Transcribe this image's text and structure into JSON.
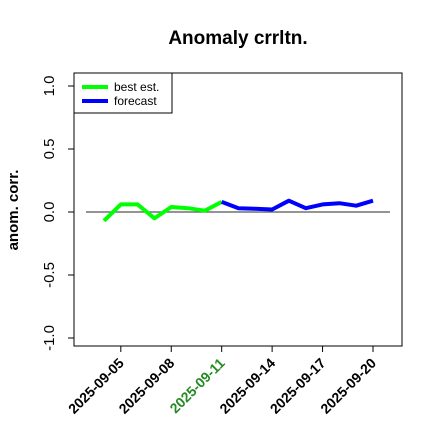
{
  "chart_data": {
    "type": "line",
    "title": "Anomaly crrltn.",
    "ylabel": "anom. corr.",
    "xlabel": "",
    "ylim": [
      -1.05,
      1.05
    ],
    "yticks": [
      -1.0,
      -0.5,
      0.0,
      0.5,
      1.0
    ],
    "ytick_labels": [
      "-1.0",
      "-0.5",
      "0.0",
      "0.5",
      "1.0"
    ],
    "x": [
      "2025-09-04",
      "2025-09-05",
      "2025-09-06",
      "2025-09-07",
      "2025-09-08",
      "2025-09-09",
      "2025-09-10",
      "2025-09-11",
      "2025-09-12",
      "2025-09-13",
      "2025-09-14",
      "2025-09-15",
      "2025-09-16",
      "2025-09-17",
      "2025-09-18",
      "2025-09-19",
      "2025-09-20"
    ],
    "xticks": [
      "2025-09-05",
      "2025-09-08",
      "2025-09-11",
      "2025-09-14",
      "2025-09-17",
      "2025-09-20"
    ],
    "xtick_colors": [
      "#000000",
      "#000000",
      "#228b22",
      "#000000",
      "#000000",
      "#000000"
    ],
    "reference_line": 0.0,
    "reference_line_color": "#555555",
    "series": [
      {
        "name": "best est.",
        "color": "#00ff00",
        "values": [
          -0.07,
          0.06,
          0.06,
          -0.05,
          0.04,
          0.03,
          0.01,
          0.08,
          null,
          null,
          null,
          null,
          null,
          null,
          null,
          null,
          0.07
        ]
      },
      {
        "name": "forecast",
        "color": "#0000ff",
        "values": [
          null,
          null,
          null,
          null,
          null,
          null,
          null,
          0.08,
          0.03,
          0.025,
          0.02,
          0.09,
          0.03,
          0.06,
          0.07,
          0.05,
          0.09
        ]
      }
    ],
    "legend": {
      "placement": "top-left",
      "entries": [
        "best est.",
        "forecast"
      ]
    },
    "grid": false
  }
}
